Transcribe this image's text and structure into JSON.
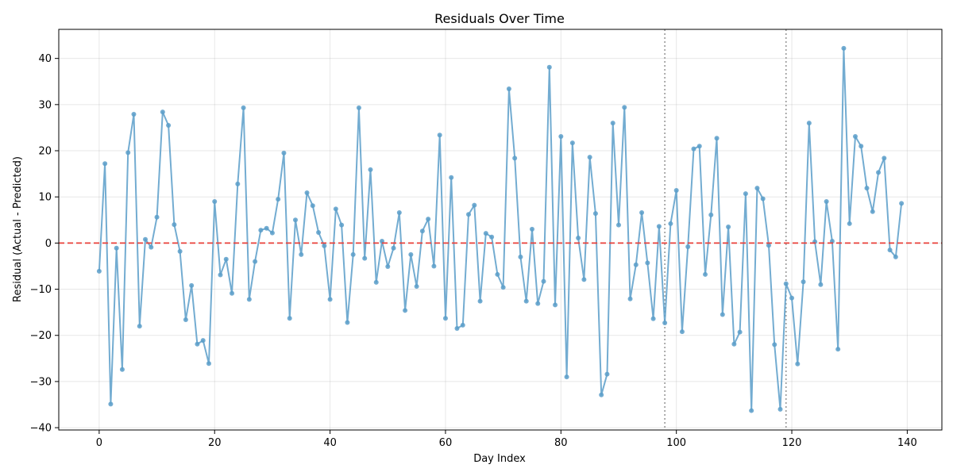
{
  "chart_data": {
    "type": "line",
    "title": "Residuals Over Time",
    "xlabel": "Day Index",
    "ylabel": "Residual (Actual - Predicted)",
    "xlim": [
      -7,
      146
    ],
    "ylim": [
      -40.5,
      46.3
    ],
    "xticks": [
      0,
      20,
      40,
      60,
      80,
      100,
      120,
      140
    ],
    "yticks": [
      -40,
      -30,
      -20,
      -10,
      0,
      10,
      20,
      30,
      40
    ],
    "grid": true,
    "legend": "none",
    "zero_line": {
      "y": 0,
      "color": "#e8403a",
      "style": "dashed"
    },
    "vlines": [
      {
        "x": 98,
        "color": "#999999",
        "style": "dotted"
      },
      {
        "x": 119,
        "color": "#999999",
        "style": "dotted"
      }
    ],
    "series": [
      {
        "color": "#5b9ec9",
        "x": [
          0,
          1,
          2,
          3,
          4,
          5,
          6,
          7,
          8,
          9,
          10,
          11,
          12,
          13,
          14,
          15,
          16,
          17,
          18,
          19,
          20,
          21,
          22,
          23,
          24,
          25,
          26,
          27,
          28,
          29,
          30,
          31,
          32,
          33,
          34,
          35,
          36,
          37,
          38,
          39,
          40,
          41,
          42,
          43,
          44,
          45,
          46,
          47,
          48,
          49,
          50,
          51,
          52,
          53,
          54,
          55,
          56,
          57,
          58,
          59,
          60,
          61,
          62,
          63,
          64,
          65,
          66,
          67,
          68,
          69,
          70,
          71,
          72,
          73,
          74,
          75,
          76,
          77,
          78,
          79,
          80,
          81,
          82,
          83,
          84,
          85,
          86,
          87,
          88,
          89,
          90,
          91,
          92,
          93,
          94,
          95,
          96,
          97,
          98,
          99,
          100,
          101,
          102,
          103,
          104,
          105,
          106,
          107,
          108,
          109,
          110,
          111,
          112,
          113,
          114,
          115,
          116,
          117,
          118,
          119,
          120,
          121,
          122,
          123,
          124,
          125,
          126,
          127,
          128,
          129,
          130,
          131,
          132,
          133,
          134,
          135,
          136,
          137,
          138,
          139
        ],
        "y": [
          -6.1,
          17.2,
          -34.9,
          -1.1,
          -27.4,
          19.6,
          27.9,
          -18.0,
          0.8,
          -0.9,
          5.6,
          28.4,
          25.5,
          4.0,
          -1.8,
          -16.6,
          -9.2,
          -21.9,
          -21.1,
          -26.1,
          9.0,
          -6.9,
          -3.5,
          -10.9,
          12.8,
          29.3,
          -12.2,
          -4.0,
          2.8,
          3.2,
          2.2,
          9.5,
          19.5,
          -16.3,
          5.0,
          -2.5,
          10.9,
          8.1,
          2.3,
          -0.6,
          -12.2,
          7.4,
          3.9,
          -17.2,
          -2.5,
          29.3,
          -3.3,
          15.9,
          -8.5,
          0.4,
          -5.1,
          -1.1,
          6.6,
          -14.6,
          -2.5,
          -9.4,
          2.6,
          5.2,
          -5.0,
          23.4,
          -16.3,
          14.2,
          -18.5,
          -17.8,
          6.2,
          8.2,
          -12.6,
          2.1,
          1.3,
          -6.8,
          -9.6,
          33.4,
          18.4,
          -3.0,
          -12.6,
          3.0,
          -13.1,
          -8.3,
          38.1,
          -13.4,
          23.1,
          -29.0,
          21.7,
          1.1,
          -7.9,
          18.6,
          6.4,
          -32.9,
          -28.4,
          26.0,
          3.9,
          29.4,
          -12.1,
          -4.7,
          6.6,
          -4.3,
          -16.4,
          3.6,
          -17.3,
          4.2,
          11.4,
          -19.2,
          -0.8,
          20.4,
          21.0,
          -6.8,
          6.1,
          22.7,
          -15.5,
          3.5,
          -21.9,
          -19.3,
          10.7,
          -36.3,
          11.9,
          9.6,
          -0.5,
          -22.0,
          -36.0,
          -8.8,
          -11.9,
          -26.2,
          -8.4,
          26.0,
          0.3,
          -9.0,
          9.0,
          0.4,
          -23.0,
          42.2,
          4.2,
          23.1,
          21.0,
          11.9,
          6.8,
          15.3,
          18.4,
          -1.5,
          -3.0,
          8.6
        ]
      }
    ]
  }
}
